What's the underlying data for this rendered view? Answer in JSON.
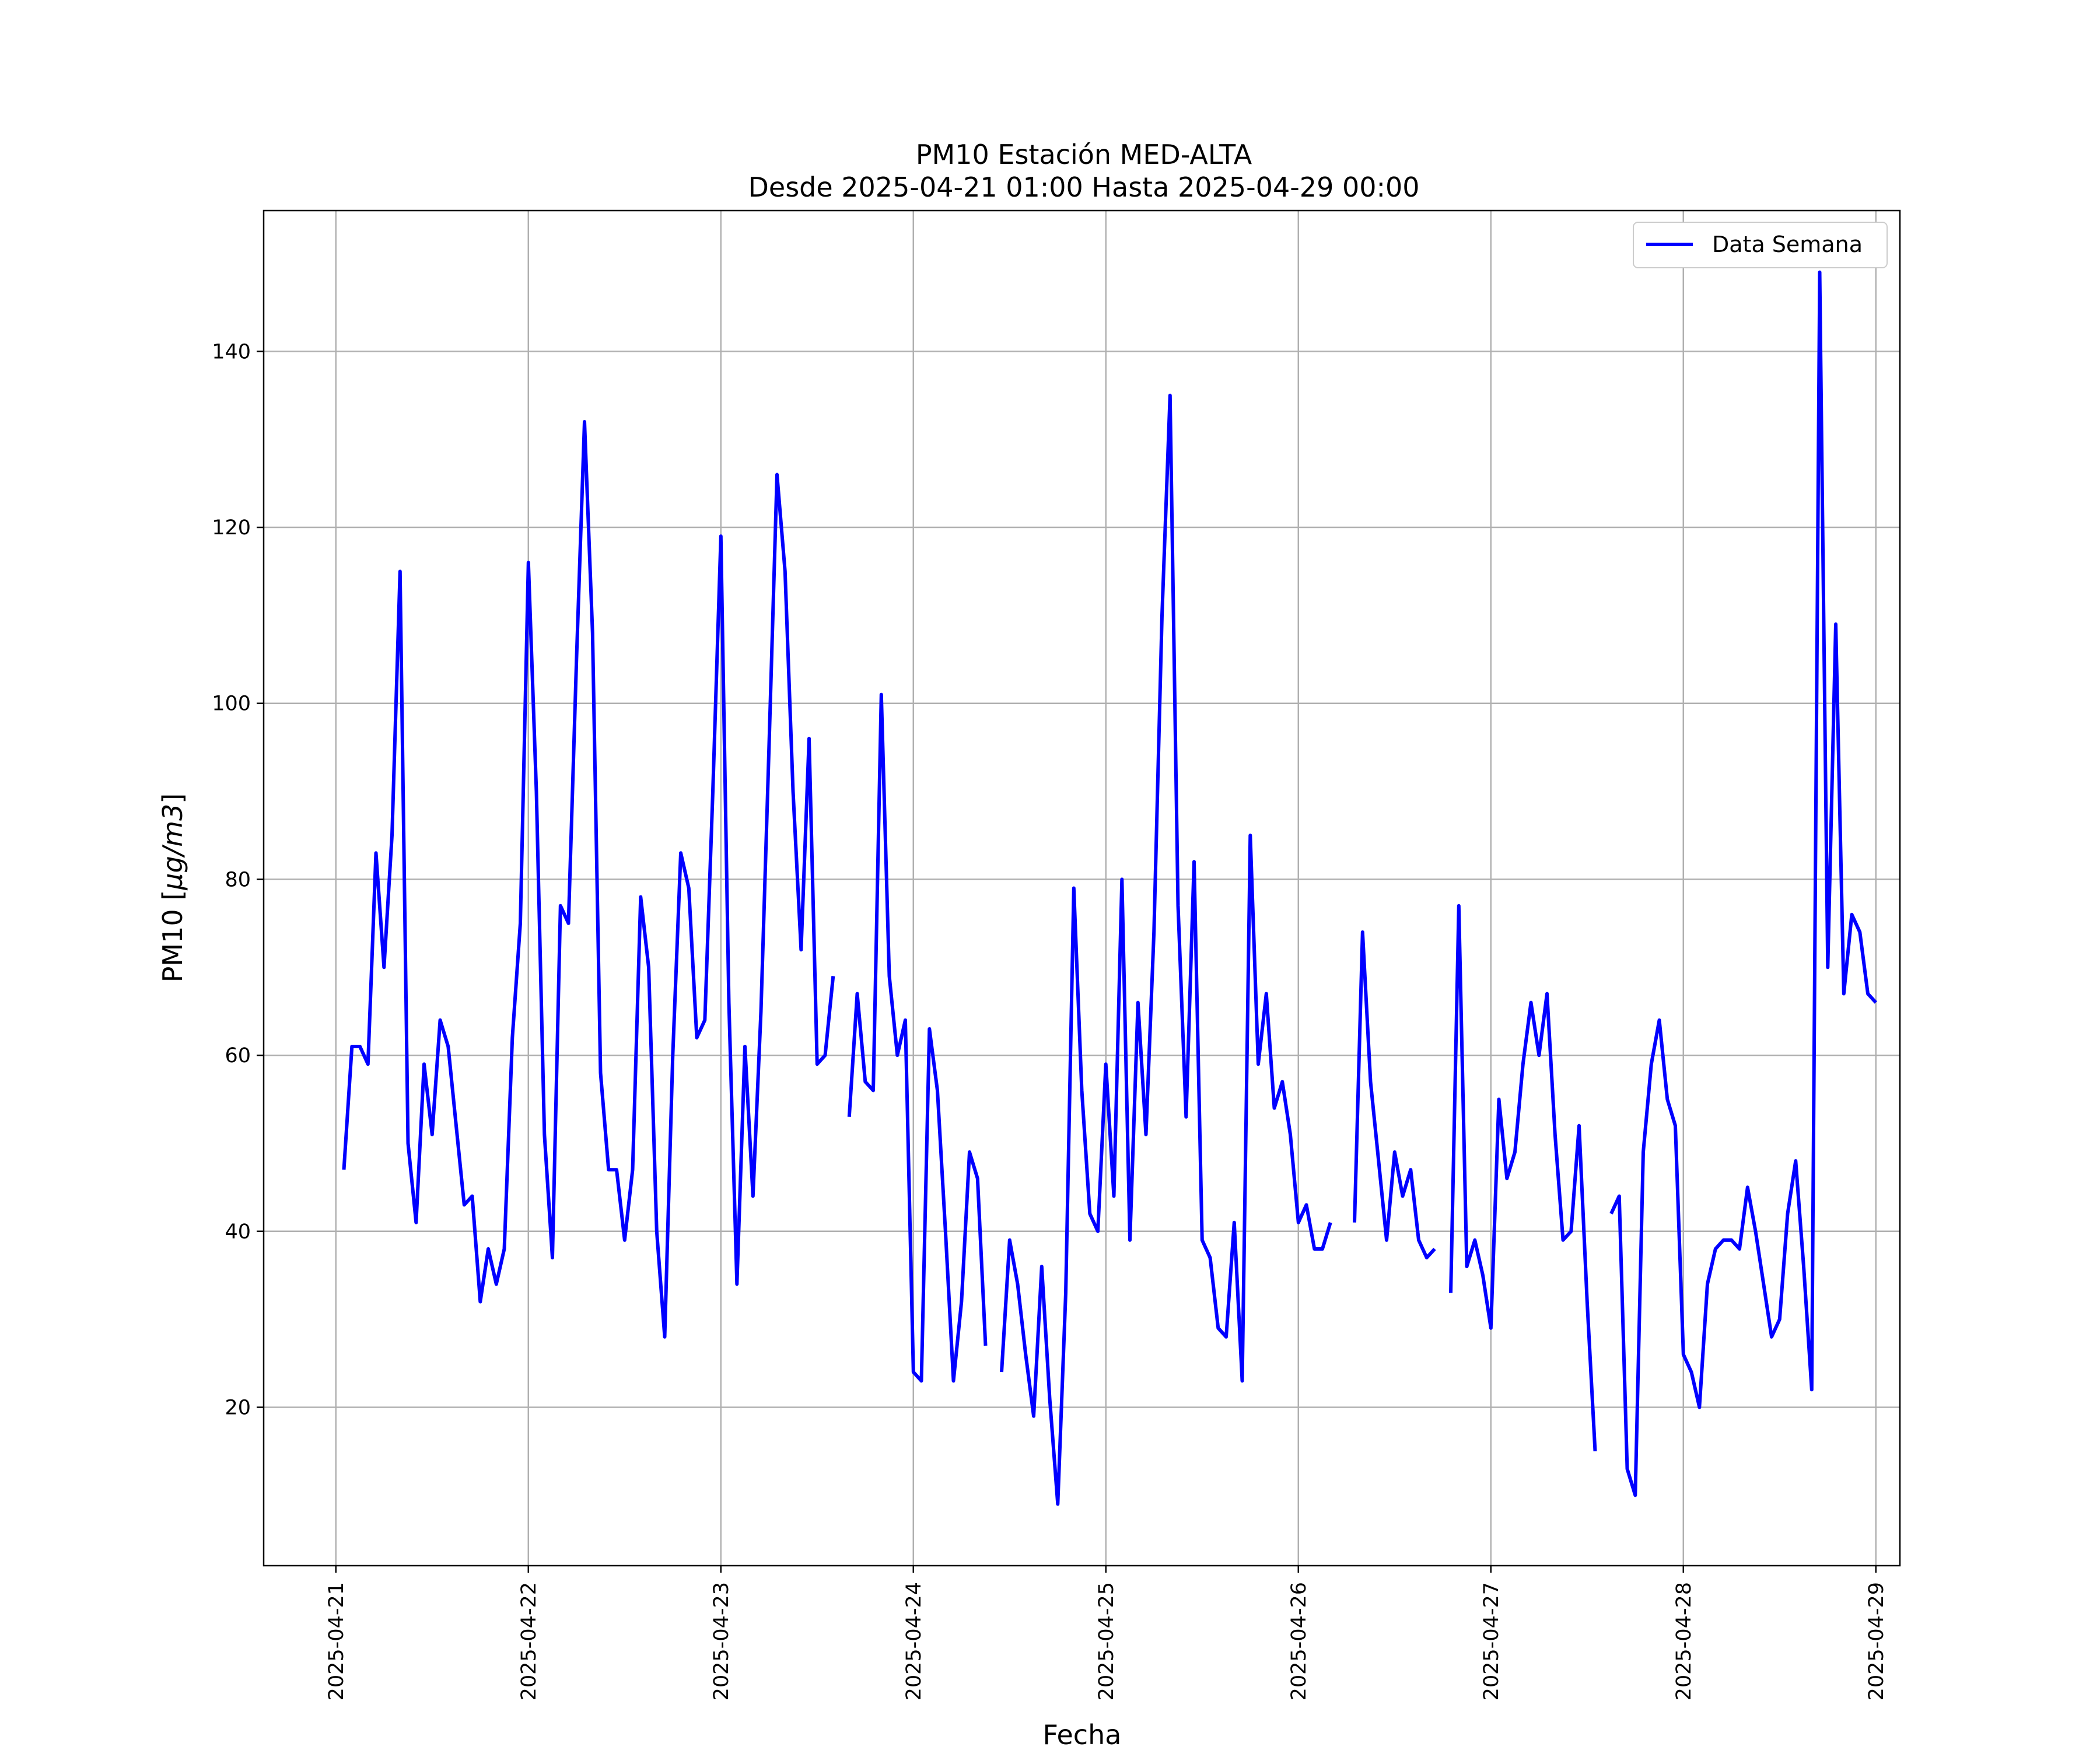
{
  "chart_data": {
    "type": "line",
    "title": "PM10 Estación MED-ALTA",
    "subtitle": "Desde 2025-04-21 01:00 Hasta 2025-04-29 00:00",
    "xlabel": "Fecha",
    "ylabel_main": "PM10 [",
    "ylabel_unit": "μg/m3",
    "ylabel_close": "]",
    "ylim": [
      2,
      156
    ],
    "xlim": [
      "2025-04-20 15:00",
      "2025-04-29 03:00"
    ],
    "y_ticks": [
      20,
      40,
      60,
      80,
      100,
      120,
      140
    ],
    "x_ticks": [
      "2025-04-21",
      "2025-04-22",
      "2025-04-23",
      "2025-04-24",
      "2025-04-25",
      "2025-04-26",
      "2025-04-27",
      "2025-04-28",
      "2025-04-29"
    ],
    "grid": true,
    "legend_position": "top-right",
    "series": [
      {
        "name": "Data Semana",
        "color": "#0000ff",
        "time_step": "1 hour",
        "start": "2025-04-21 01:00",
        "end": "2025-04-29 00:00",
        "values": [
          47,
          61,
          61,
          59,
          83,
          70,
          85,
          115,
          50,
          41,
          59,
          51,
          64,
          61,
          52,
          43,
          44,
          32,
          38,
          34,
          38,
          62,
          75,
          116,
          90,
          51,
          37,
          77,
          75,
          105,
          132,
          108,
          58,
          47,
          47,
          39,
          47,
          78,
          70,
          40,
          28,
          60,
          83,
          79,
          62,
          64,
          90,
          119,
          66,
          34,
          61,
          44,
          65,
          95,
          126,
          115,
          90,
          72,
          96,
          59,
          60,
          69,
          null,
          53,
          67,
          57,
          56,
          101,
          69,
          60,
          64,
          24,
          23,
          63,
          56,
          40,
          23,
          32,
          49,
          46,
          27,
          null,
          24,
          39,
          34,
          26,
          19,
          36,
          21,
          9,
          33,
          79,
          56,
          42,
          40,
          59,
          44,
          80,
          39,
          66,
          51,
          74,
          110,
          135,
          77,
          53,
          82,
          39,
          37,
          29,
          28,
          41,
          23,
          85,
          59,
          67,
          54,
          57,
          51,
          41,
          43,
          38,
          38,
          41,
          null,
          null,
          41,
          74,
          57,
          48,
          39,
          49,
          44,
          47,
          39,
          37,
          38,
          null,
          33,
          77,
          36,
          39,
          35,
          29,
          55,
          46,
          49,
          59,
          66,
          60,
          67,
          51,
          39,
          40,
          52,
          32,
          15,
          null,
          42,
          44,
          13,
          10,
          49,
          59,
          64,
          55,
          52,
          26,
          24,
          20,
          34,
          38,
          39,
          39,
          38,
          45,
          40,
          34,
          28,
          30,
          42,
          48,
          36,
          22,
          149,
          70,
          109,
          67,
          76,
          74,
          67,
          66
        ]
      }
    ]
  }
}
